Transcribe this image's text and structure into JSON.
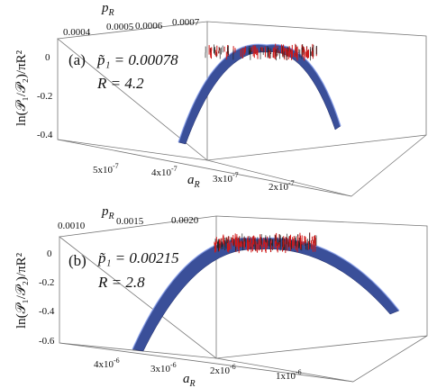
{
  "chart_data": [
    {
      "type": "surface3d",
      "panel": "(a)",
      "annotation_p1": "p̃₁ = 0.00078",
      "annotation_R": "R = 4.2",
      "ylabel": "ln(𝒫₁/𝒫₂)/πR²",
      "top_axis_label": "p",
      "top_axis_sub": "R",
      "bottom_axis_label": "a",
      "bottom_axis_sub": "R",
      "z_ticks": [
        "0",
        "-0.2",
        "-0.4"
      ],
      "top_ticks": [
        "0.0004",
        "0.0005",
        "0.0006",
        "0.0007"
      ],
      "bottom_ticks": [
        {
          "m": "5x10",
          "e": "-7"
        },
        {
          "m": "4x10",
          "e": "-7"
        },
        {
          "m": "3x10",
          "e": "-7"
        },
        {
          "m": "2x10",
          "e": "-7"
        }
      ],
      "zlim": [
        -0.45,
        0.05
      ],
      "surface_min_z": -0.45,
      "data_points_z": 0.0
    },
    {
      "type": "surface3d",
      "panel": "(b)",
      "annotation_p1": "p̃₁ = 0.00215",
      "annotation_R": "R = 2.8",
      "ylabel": "ln(𝒫₁/𝒫₂)/πR²",
      "top_axis_label": "p",
      "top_axis_sub": "R",
      "bottom_axis_label": "a",
      "bottom_axis_sub": "R",
      "z_ticks": [
        "0",
        "-0.2",
        "-0.4",
        "-0.6"
      ],
      "top_ticks": [
        "0.0010",
        "0.0015",
        "0.0020"
      ],
      "bottom_ticks": [
        {
          "m": "4x10",
          "e": "-6"
        },
        {
          "m": "3x10",
          "e": "-6"
        },
        {
          "m": "2x10",
          "e": "-6"
        },
        {
          "m": "1x10",
          "e": "-6"
        }
      ],
      "zlim": [
        -0.65,
        0.05
      ],
      "surface_min_z": -0.6,
      "data_points_z": 0.0
    }
  ]
}
